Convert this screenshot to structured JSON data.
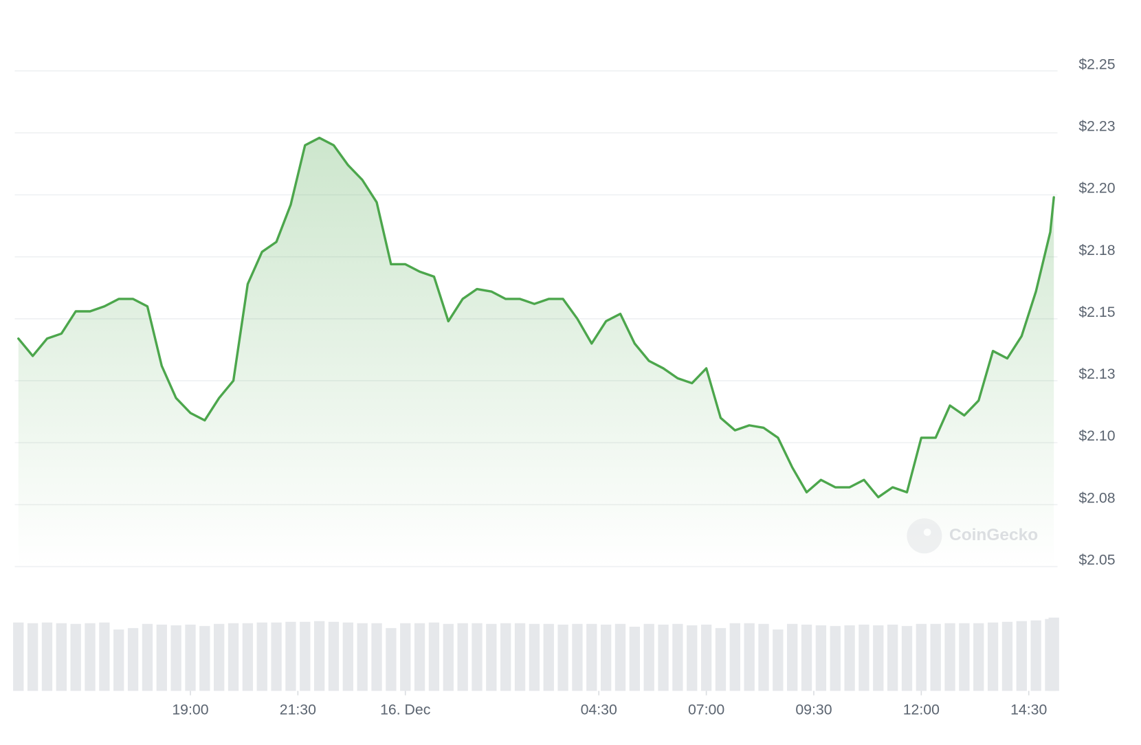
{
  "chart_data": {
    "type": "area",
    "watermark": "CoinGecko",
    "color": "#4ca64c",
    "volume_color": "#e6e8eb",
    "grid": true,
    "ylim": [
      2.05,
      2.25
    ],
    "yticks": [
      {
        "value": 2.05,
        "label": "$2.05"
      },
      {
        "value": 2.075,
        "label": "$2.08"
      },
      {
        "value": 2.1,
        "label": "$2.10"
      },
      {
        "value": 2.125,
        "label": "$2.13"
      },
      {
        "value": 2.15,
        "label": "$2.15"
      },
      {
        "value": 2.175,
        "label": "$2.18"
      },
      {
        "value": 2.2,
        "label": "$2.20"
      },
      {
        "value": 2.225,
        "label": "$2.23"
      },
      {
        "value": 2.25,
        "label": "$2.25"
      }
    ],
    "xlim": [
      "15. Dec 14:57",
      "16. Dec 15:07"
    ],
    "xticks": [
      {
        "value": "15. Dec 19:00",
        "label": "19:00"
      },
      {
        "value": "15. Dec 21:30",
        "label": "21:30"
      },
      {
        "value": "16. Dec 00:00",
        "label": "16. Dec"
      },
      {
        "value": "16. Dec 04:30",
        "label": "04:30"
      },
      {
        "value": "16. Dec 07:00",
        "label": "07:00"
      },
      {
        "value": "16. Dec 09:30",
        "label": "09:30"
      },
      {
        "value": "16. Dec 12:00",
        "label": "12:00"
      },
      {
        "value": "16. Dec 14:30",
        "label": "14:30"
      }
    ],
    "x": [
      "15. Dec 15:00",
      "15. Dec 15:20",
      "15. Dec 15:40",
      "15. Dec 16:00",
      "15. Dec 16:20",
      "15. Dec 16:40",
      "15. Dec 17:00",
      "15. Dec 17:20",
      "15. Dec 17:40",
      "15. Dec 18:00",
      "15. Dec 18:20",
      "15. Dec 18:40",
      "15. Dec 19:00",
      "15. Dec 19:20",
      "15. Dec 19:40",
      "15. Dec 20:00",
      "15. Dec 20:20",
      "15. Dec 20:40",
      "15. Dec 21:00",
      "15. Dec 21:20",
      "15. Dec 21:40",
      "15. Dec 22:00",
      "15. Dec 22:20",
      "15. Dec 22:40",
      "15. Dec 23:00",
      "15. Dec 23:20",
      "15. Dec 23:40",
      "16. Dec 00:00",
      "16. Dec 00:20",
      "16. Dec 00:40",
      "16. Dec 01:00",
      "16. Dec 01:20",
      "16. Dec 01:40",
      "16. Dec 02:00",
      "16. Dec 02:20",
      "16. Dec 02:40",
      "16. Dec 03:00",
      "16. Dec 03:20",
      "16. Dec 03:40",
      "16. Dec 04:00",
      "16. Dec 04:20",
      "16. Dec 04:40",
      "16. Dec 05:00",
      "16. Dec 05:20",
      "16. Dec 05:40",
      "16. Dec 06:00",
      "16. Dec 06:20",
      "16. Dec 06:40",
      "16. Dec 07:00",
      "16. Dec 07:20",
      "16. Dec 07:40",
      "16. Dec 08:00",
      "16. Dec 08:20",
      "16. Dec 08:40",
      "16. Dec 09:00",
      "16. Dec 09:20",
      "16. Dec 09:40",
      "16. Dec 10:00",
      "16. Dec 10:20",
      "16. Dec 10:40",
      "16. Dec 11:00",
      "16. Dec 11:20",
      "16. Dec 11:40",
      "16. Dec 12:00",
      "16. Dec 12:20",
      "16. Dec 12:40",
      "16. Dec 13:00",
      "16. Dec 13:20",
      "16. Dec 13:40",
      "16. Dec 14:00",
      "16. Dec 14:20",
      "16. Dec 14:40",
      "16. Dec 15:00",
      "16. Dec 15:05"
    ],
    "values": [
      2.142,
      2.135,
      2.142,
      2.144,
      2.153,
      2.153,
      2.155,
      2.158,
      2.158,
      2.155,
      2.131,
      2.118,
      2.112,
      2.109,
      2.118,
      2.125,
      2.164,
      2.177,
      2.181,
      2.196,
      2.22,
      2.223,
      2.22,
      2.212,
      2.206,
      2.197,
      2.172,
      2.172,
      2.169,
      2.167,
      2.149,
      2.158,
      2.162,
      2.161,
      2.158,
      2.158,
      2.156,
      2.158,
      2.158,
      2.15,
      2.14,
      2.149,
      2.152,
      2.14,
      2.133,
      2.13,
      2.126,
      2.124,
      2.13,
      2.11,
      2.105,
      2.107,
      2.106,
      2.102,
      2.09,
      2.08,
      2.085,
      2.082,
      2.082,
      2.085,
      2.078,
      2.082,
      2.08,
      2.102,
      2.102,
      2.115,
      2.111,
      2.117,
      2.137,
      2.134,
      2.143,
      2.161,
      2.185,
      2.199
    ],
    "volume_lim": [
      0,
      110
    ],
    "volume": [
      98,
      97,
      98,
      97,
      96,
      97,
      98,
      88,
      90,
      96,
      95,
      94,
      95,
      93,
      96,
      97,
      97,
      98,
      98,
      99,
      99,
      100,
      99,
      98,
      97,
      97,
      90,
      97,
      97,
      98,
      96,
      97,
      97,
      96,
      97,
      97,
      96,
      96,
      95,
      96,
      96,
      95,
      96,
      92,
      96,
      95,
      96,
      94,
      95,
      90,
      97,
      97,
      96,
      88,
      96,
      95,
      94,
      93,
      94,
      95,
      94,
      95,
      93,
      96,
      96,
      97,
      97,
      97,
      98,
      99,
      100,
      101,
      103,
      105
    ]
  }
}
